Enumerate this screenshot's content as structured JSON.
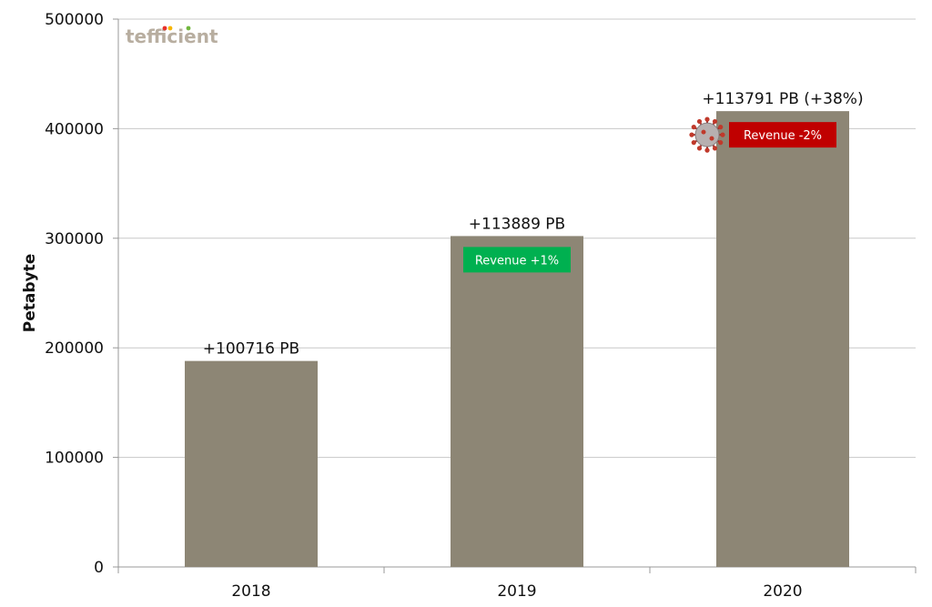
{
  "chart_data": {
    "type": "bar",
    "categories": [
      "2018",
      "2019",
      "2020"
    ],
    "values": [
      188000,
      302000,
      416000
    ],
    "data_labels": [
      "+100716 PB",
      "+113889 PB",
      "+113791 PB (+38%)"
    ],
    "ylabel": "Petabyte",
    "ylim": [
      0,
      500000
    ],
    "yticks": [
      0,
      100000,
      200000,
      300000,
      400000,
      500000
    ],
    "grid": true,
    "bar_color": "#8d8675",
    "annotations": [
      {
        "category": "2019",
        "text": "Revenue +1%",
        "color": "#00b050"
      },
      {
        "category": "2020",
        "text": "Revenue -2%",
        "color": "#c00000",
        "icon": "virus-icon"
      }
    ]
  },
  "logo": {
    "text": "tefficient",
    "dot_colors": [
      "#e8312a",
      "#f7b500",
      "#71b73d"
    ]
  }
}
